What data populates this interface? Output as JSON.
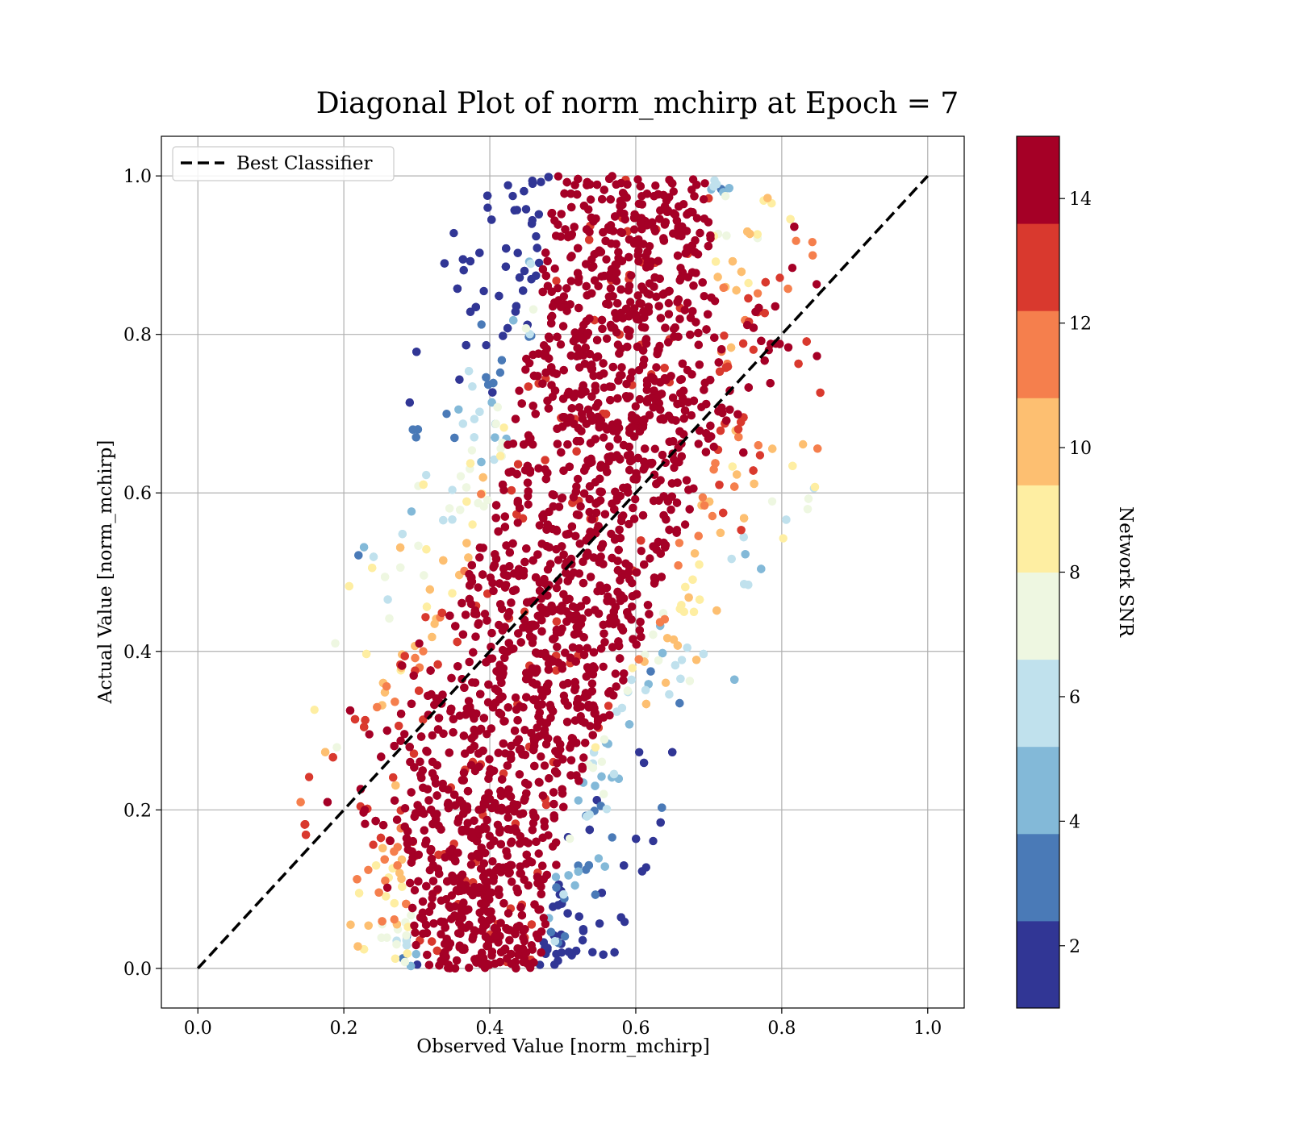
{
  "chart_data": {
    "type": "scatter",
    "title": "Diagonal Plot of norm_mchirp at Epoch = 7",
    "xlabel": "Observed Value [norm_mchirp]",
    "ylabel": "Actual Value [norm_mchirp]",
    "xlim": [
      -0.05,
      1.05
    ],
    "ylim": [
      -0.05,
      1.05
    ],
    "x_ticks": [
      "0.0",
      "0.2",
      "0.4",
      "0.6",
      "0.8",
      "1.0"
    ],
    "y_ticks": [
      "0.0",
      "0.2",
      "0.4",
      "0.6",
      "0.8",
      "1.0"
    ],
    "grid": true,
    "legend": {
      "placement": "upper-left",
      "entries": [
        {
          "label": "Best Classifier",
          "style": "dashed",
          "color": "#000000"
        }
      ]
    },
    "reference_line": {
      "name": "Best Classifier",
      "x": [
        0.0,
        1.0
      ],
      "y": [
        0.0,
        1.0
      ]
    },
    "scatter_band": {
      "description_points": [
        {
          "actual": 0.0,
          "observed_min": 0.22,
          "observed_max": 0.55
        },
        {
          "actual": 0.2,
          "observed_min": 0.16,
          "observed_max": 0.62
        },
        {
          "actual": 0.4,
          "observed_min": 0.2,
          "observed_max": 0.74
        },
        {
          "actual": 0.6,
          "observed_min": 0.27,
          "observed_max": 0.82
        },
        {
          "actual": 0.8,
          "observed_min": 0.33,
          "observed_max": 0.84
        },
        {
          "actual": 1.0,
          "observed_min": 0.38,
          "observed_max": 0.81
        }
      ]
    },
    "colorbar": {
      "label": "Network SNR",
      "range": [
        1,
        15
      ],
      "ticks": [
        "2",
        "4",
        "6",
        "8",
        "10",
        "12",
        "14"
      ],
      "colors": [
        "#313695",
        "#4a7ab7",
        "#83b9d8",
        "#c0e1ed",
        "#eef7e1",
        "#feeea2",
        "#fdbf71",
        "#f57f4d",
        "#d9392e",
        "#a50026"
      ]
    }
  }
}
